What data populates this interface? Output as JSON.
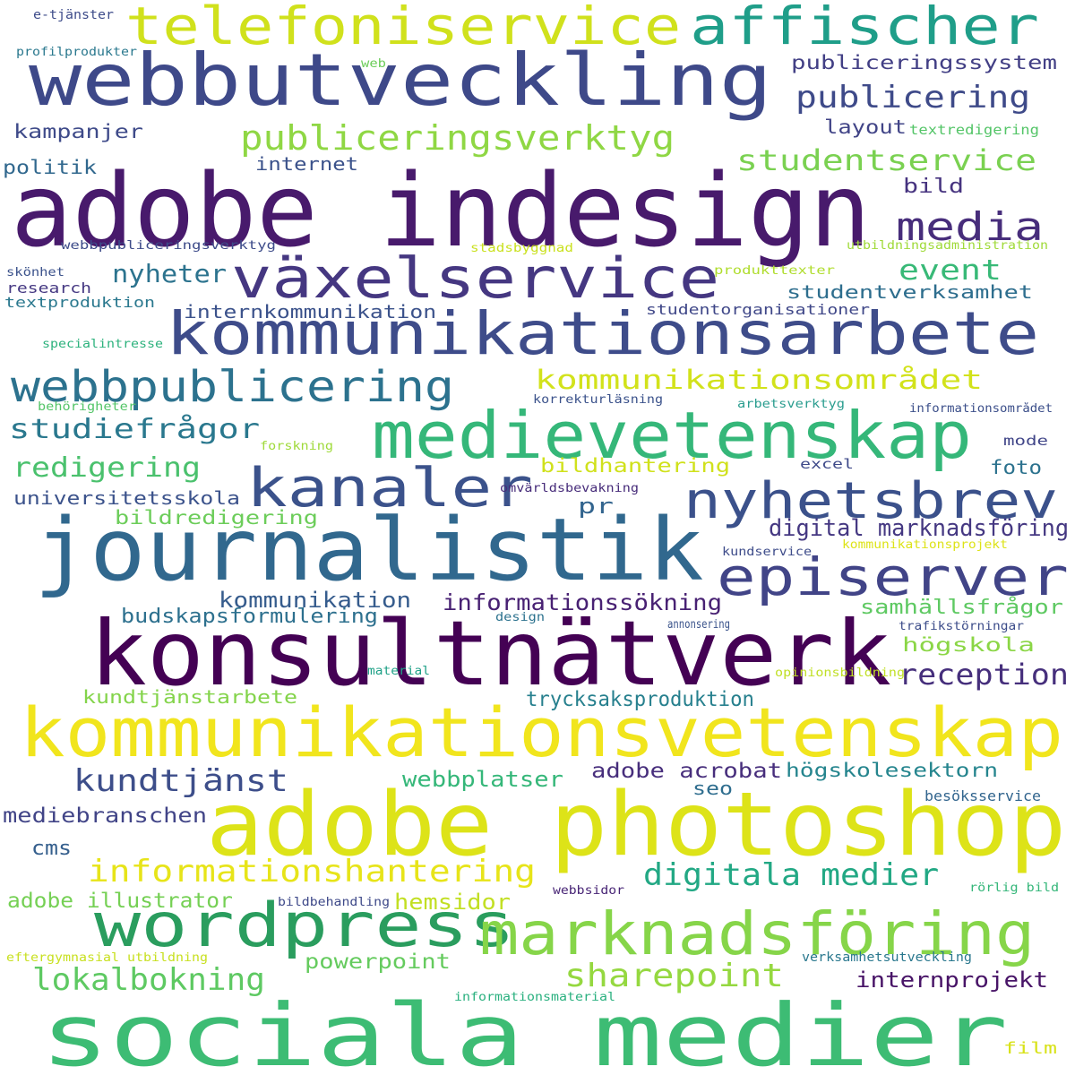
{
  "words": [
    {
      "text": "adobe indesign",
      "color": "#481a6c"
    },
    {
      "text": "konsultnätverk",
      "color": "#440154"
    },
    {
      "text": "journalistik",
      "color": "#31688e"
    },
    {
      "text": "sociala medier",
      "color": "#3dbc74"
    },
    {
      "text": "adobe photoshop",
      "color": "#dde318"
    },
    {
      "text": "kommunikationsvetenskap",
      "color": "#f1e51d"
    },
    {
      "text": "webbutveckling",
      "color": "#3e4989"
    },
    {
      "text": "kommunikationsarbete",
      "color": "#3e4c8a"
    },
    {
      "text": "medievetenskap",
      "color": "#35b779"
    },
    {
      "text": "telefoniservice",
      "color": "#d0e11c"
    },
    {
      "text": "affischer",
      "color": "#1f9e89"
    },
    {
      "text": "växelservice",
      "color": "#453781"
    },
    {
      "text": "wordpress",
      "color": "#2a9d5e"
    },
    {
      "text": "marknadsföring",
      "color": "#86d549"
    },
    {
      "text": "nyhetsbrev",
      "color": "#3b518b"
    },
    {
      "text": "episerver",
      "color": "#414487"
    },
    {
      "text": "kanaler",
      "color": "#3b528b"
    },
    {
      "text": "webbpublicering",
      "color": "#2c728e"
    },
    {
      "text": "media",
      "color": "#472d7b"
    },
    {
      "text": "publiceringsverktyg",
      "color": "#8fd744"
    },
    {
      "text": "informationshantering",
      "color": "#e7e419"
    },
    {
      "text": "digitala medier",
      "color": "#22a884"
    },
    {
      "text": "sharepoint",
      "color": "#95d840"
    },
    {
      "text": "kundtjänst",
      "color": "#3d4e8a"
    },
    {
      "text": "lokalbokning",
      "color": "#5ec962"
    },
    {
      "text": "kommunikationsområdet",
      "color": "#d2e21b"
    },
    {
      "text": "publicering",
      "color": "#3e4a89"
    },
    {
      "text": "studentservice",
      "color": "#7ad151"
    },
    {
      "text": "reception",
      "color": "#462f7c"
    },
    {
      "text": "studiefrågor",
      "color": "#2a788e"
    },
    {
      "text": "redigering",
      "color": "#4ac16d"
    },
    {
      "text": "event",
      "color": "#38b977"
    },
    {
      "text": "nyheter",
      "color": "#2c738e"
    },
    {
      "text": "digital marknadsföring",
      "color": "#453882"
    },
    {
      "text": "informationssökning",
      "color": "#482173"
    },
    {
      "text": "kommunikation",
      "color": "#365c8d"
    },
    {
      "text": "budskapsformulering",
      "color": "#2d708e"
    },
    {
      "text": "trycksaksproduktion",
      "color": "#27808e"
    },
    {
      "text": "kundtjänstarbete",
      "color": "#84d44b"
    },
    {
      "text": "samhällsfrågor",
      "color": "#5ec962"
    },
    {
      "text": "adobe acrobat",
      "color": "#472e7c"
    },
    {
      "text": "högskolesektorn",
      "color": "#25858e"
    },
    {
      "text": "webbplatser",
      "color": "#35b779"
    },
    {
      "text": "mediebranschen",
      "color": "#414487"
    },
    {
      "text": "adobe illustrator",
      "color": "#75d054"
    },
    {
      "text": "hemsidor",
      "color": "#c2df23"
    },
    {
      "text": "powerpoint",
      "color": "#65cb5e"
    },
    {
      "text": "internprojekt",
      "color": "#481467"
    },
    {
      "text": "publiceringssystem",
      "color": "#423f85"
    },
    {
      "text": "kampanjer",
      "color": "#3e4a89"
    },
    {
      "text": "politik",
      "color": "#31688e"
    },
    {
      "text": "internet",
      "color": "#3b528b"
    },
    {
      "text": "studentverksamhet",
      "color": "#2e6e8e"
    },
    {
      "text": "internkommunikation",
      "color": "#3b528b"
    },
    {
      "text": "bildhantering",
      "color": "#d0e11c"
    },
    {
      "text": "bildredigering",
      "color": "#6ccd5a"
    },
    {
      "text": "universitetsskola",
      "color": "#3b528b"
    },
    {
      "text": "högskola",
      "color": "#8bd646"
    },
    {
      "text": "pr",
      "color": "#32648e"
    },
    {
      "text": "cms",
      "color": "#355f8d"
    },
    {
      "text": "layout",
      "color": "#414487"
    },
    {
      "text": "bild",
      "color": "#46337f"
    },
    {
      "text": "foto",
      "color": "#2c728e"
    },
    {
      "text": "seo",
      "color": "#2e6d8e"
    },
    {
      "text": "excel",
      "color": "#3e4989"
    },
    {
      "text": "mode",
      "color": "#404588"
    },
    {
      "text": "film",
      "color": "#d8e219"
    },
    {
      "text": "research",
      "color": "#453882"
    },
    {
      "text": "textproduktion",
      "color": "#2a788e"
    },
    {
      "text": "studentorganisationer",
      "color": "#3f4788"
    },
    {
      "text": "skönhet",
      "color": "#3b528b"
    },
    {
      "text": "webbpubliceringsverktyg",
      "color": "#3e4c8a"
    },
    {
      "text": "stadsbyggnad",
      "color": "#cae11f"
    },
    {
      "text": "utbildningsadministration",
      "color": "#a0da39"
    },
    {
      "text": "produkttexter",
      "color": "#b0dd2f"
    },
    {
      "text": "specialintresse",
      "color": "#2db27d"
    },
    {
      "text": "behörigheter",
      "color": "#54c568"
    },
    {
      "text": "korrekturläsning",
      "color": "#3b528b"
    },
    {
      "text": "arbetsverktyg",
      "color": "#2a9d8f"
    },
    {
      "text": "informationsområdet",
      "color": "#3c4f8a"
    },
    {
      "text": "forskning",
      "color": "#9fda3a"
    },
    {
      "text": "omvärldsbevakning",
      "color": "#472c7a"
    },
    {
      "text": "kundservice",
      "color": "#3e4c8a"
    },
    {
      "text": "kommunikationsprojekt",
      "color": "#dde318"
    },
    {
      "text": "design",
      "color": "#2c728e"
    },
    {
      "text": "annonsering",
      "color": "#3a538b"
    },
    {
      "text": "trafikstörningar",
      "color": "#3d4d8a"
    },
    {
      "text": "material",
      "color": "#1fa187"
    },
    {
      "text": "opinionsbildning",
      "color": "#c0df25"
    },
    {
      "text": "besöksservice",
      "color": "#32658e"
    },
    {
      "text": "bildbehandling",
      "color": "#3e4989"
    },
    {
      "text": "webbsidor",
      "color": "#482576"
    },
    {
      "text": "rörlig bild",
      "color": "#34b679"
    },
    {
      "text": "eftergymnasial utbildning",
      "color": "#c8e020"
    },
    {
      "text": "verksamhetsutveckling",
      "color": "#2a788e"
    },
    {
      "text": "informationsmaterial",
      "color": "#2ab07f"
    },
    {
      "text": "textredigering",
      "color": "#54c568"
    },
    {
      "text": "e-tjänster",
      "color": "#3e4c8a"
    },
    {
      "text": "profilprodukter",
      "color": "#2a788e"
    },
    {
      "text": "web",
      "color": "#6ccd5a"
    }
  ]
}
